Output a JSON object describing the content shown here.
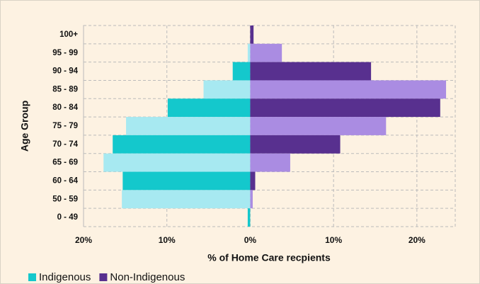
{
  "chart_data": {
    "type": "pyramid",
    "categories": [
      "100+",
      "95 - 99",
      "90 - 94",
      "85 - 89",
      "80 - 84",
      "75 - 79",
      "70 - 74",
      "65 - 69",
      "60 - 64",
      "50 - 59",
      "0 - 49"
    ],
    "series": [
      {
        "name": "Indigenous",
        "colors": [
          "#14c8cc",
          "#a7e9f1"
        ],
        "values": [
          0,
          -0.3,
          -2.1,
          -5.6,
          -9.9,
          -14.9,
          -16.5,
          -17.6,
          -15.3,
          -15.4,
          -0.3
        ]
      },
      {
        "name": "Non-Indigenous",
        "colors": [
          "#58308f",
          "#aa8ce2"
        ],
        "values": [
          0.4,
          3.8,
          14.5,
          23.5,
          22.8,
          16.3,
          10.8,
          4.8,
          0.6,
          0.3,
          0
        ]
      }
    ],
    "xlim": [
      -20,
      24.6
    ],
    "xticks": [
      {
        "value": -20,
        "label": "20%"
      },
      {
        "value": -10,
        "label": "10%"
      },
      {
        "value": 0,
        "label": "0%"
      },
      {
        "value": 10,
        "label": "10%"
      },
      {
        "value": 20,
        "label": "20%"
      }
    ],
    "xlabel": "% of Home Care recpients",
    "ylabel": "Age Group",
    "grid": true
  }
}
